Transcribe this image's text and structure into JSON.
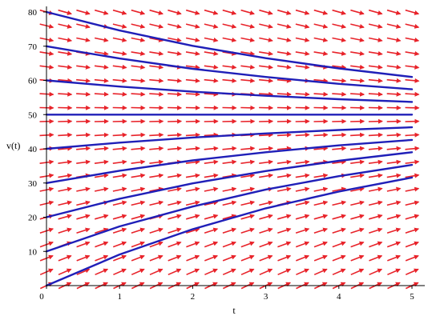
{
  "chart_data": {
    "type": "line",
    "subtype": "direction-field-with-solution-curves",
    "xlabel": "t",
    "ylabel": "v(t)",
    "xlim": [
      0,
      5
    ],
    "ylim": [
      0,
      80
    ],
    "x_ticks": [
      {
        "value": 0,
        "label": "0"
      },
      {
        "value": 1,
        "label": "1"
      },
      {
        "value": 2,
        "label": "2"
      },
      {
        "value": 3,
        "label": "3"
      },
      {
        "value": 4,
        "label": "4"
      },
      {
        "value": 5,
        "label": "5"
      }
    ],
    "y_ticks": [
      {
        "value": 10,
        "label": "10"
      },
      {
        "value": 20,
        "label": "20"
      },
      {
        "value": 30,
        "label": "30"
      },
      {
        "value": 40,
        "label": "40"
      },
      {
        "value": 50,
        "label": "50"
      },
      {
        "value": 60,
        "label": "60"
      },
      {
        "value": 70,
        "label": "70"
      },
      {
        "value": 80,
        "label": "80"
      }
    ],
    "grid": false,
    "direction_field": {
      "color": "#e8232a",
      "t_values": [
        0,
        0.25,
        0.5,
        0.75,
        1,
        1.25,
        1.5,
        1.75,
        2,
        2.25,
        2.5,
        2.75,
        3,
        3.25,
        3.5,
        3.75,
        4,
        4.25,
        4.5,
        4.75,
        5
      ],
      "v_values": [
        0,
        4,
        8,
        12,
        16,
        20,
        24,
        28,
        32,
        36,
        40,
        44,
        48,
        52,
        56,
        60,
        64,
        68,
        72,
        76,
        80
      ],
      "equilibrium": 50,
      "rate": 0.2
    },
    "series": [
      {
        "values": [
          [
            0,
            80
          ],
          [
            1,
            74.6
          ],
          [
            2,
            70.1
          ],
          [
            3,
            66.5
          ],
          [
            4,
            63.5
          ],
          [
            5,
            61
          ]
        ]
      },
      {
        "values": [
          [
            0,
            70
          ],
          [
            1,
            66.4
          ],
          [
            2,
            63.4
          ],
          [
            3,
            61
          ],
          [
            4,
            59
          ],
          [
            5,
            57.4
          ]
        ]
      },
      {
        "values": [
          [
            0,
            60
          ],
          [
            1,
            58.2
          ],
          [
            2,
            56.7
          ],
          [
            3,
            55.5
          ],
          [
            4,
            54.5
          ],
          [
            5,
            53.7
          ]
        ]
      },
      {
        "values": [
          [
            0,
            50
          ],
          [
            1,
            50
          ],
          [
            2,
            50
          ],
          [
            3,
            50
          ],
          [
            4,
            50
          ],
          [
            5,
            50
          ]
        ]
      },
      {
        "values": [
          [
            0,
            40
          ],
          [
            1,
            41.8
          ],
          [
            2,
            43.3
          ],
          [
            3,
            44.5
          ],
          [
            4,
            45.5
          ],
          [
            5,
            46.3
          ]
        ]
      },
      {
        "values": [
          [
            0,
            30
          ],
          [
            1,
            33.6
          ],
          [
            2,
            36.6
          ],
          [
            3,
            39
          ],
          [
            4,
            41
          ],
          [
            5,
            42.6
          ]
        ]
      },
      {
        "values": [
          [
            0,
            20
          ],
          [
            1,
            25.4
          ],
          [
            2,
            29.9
          ],
          [
            3,
            33.5
          ],
          [
            4,
            36.5
          ],
          [
            5,
            39
          ]
        ]
      },
      {
        "values": [
          [
            0,
            10
          ],
          [
            1,
            17.3
          ],
          [
            2,
            23.1
          ],
          [
            3,
            28.1
          ],
          [
            4,
            32
          ],
          [
            5,
            35.3
          ]
        ]
      },
      {
        "values": [
          [
            0,
            0
          ],
          [
            1,
            9.1
          ],
          [
            2,
            16.5
          ],
          [
            3,
            22.6
          ],
          [
            4,
            27.5
          ],
          [
            5,
            31.6
          ]
        ]
      }
    ],
    "series_color": "#1f1fb8"
  }
}
